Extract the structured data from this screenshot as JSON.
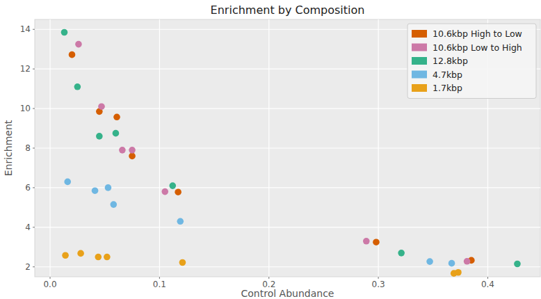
{
  "chart_data": {
    "type": "scatter",
    "title": "Enrichment by Composition",
    "x_label": "Control Abundance",
    "y_label": "Enrichment",
    "xlim": [
      -0.014,
      0.448
    ],
    "ylim": [
      1.5,
      14.5
    ],
    "xticks": [
      {
        "value": 0,
        "label": "0.0"
      },
      0.1,
      0.2,
      0.3,
      0.4
    ],
    "yticks": [
      2,
      4,
      6,
      8,
      10,
      12,
      14
    ],
    "grid": true,
    "legend": "upper right",
    "marker": "circle",
    "series": [
      {
        "name": "10.6kbp High to Low",
        "color": "#d55e00",
        "x": [
          0.02,
          0.045,
          0.061,
          0.075,
          0.117,
          0.298,
          0.385
        ],
        "values": [
          12.72,
          9.85,
          9.57,
          7.6,
          5.78,
          3.25,
          2.33
        ]
      },
      {
        "name": "10.6kbp Low to High",
        "color": "#cc79a7",
        "x": [
          0.026,
          0.047,
          0.066,
          0.075,
          0.105,
          0.289,
          0.381
        ],
        "values": [
          13.25,
          10.1,
          7.9,
          7.9,
          5.8,
          3.3,
          2.28
        ]
      },
      {
        "name": "12.8kbp",
        "color": "#35b28a",
        "x": [
          0.013,
          0.025,
          0.045,
          0.06,
          0.112,
          0.321,
          0.427
        ],
        "values": [
          13.85,
          11.1,
          8.6,
          8.75,
          6.1,
          2.7,
          2.15
        ]
      },
      {
        "name": "4.7kbp",
        "color": "#6fb7e2",
        "x": [
          0.016,
          0.041,
          0.053,
          0.058,
          0.119,
          0.347,
          0.367
        ],
        "values": [
          6.3,
          5.85,
          6.0,
          5.15,
          4.3,
          2.27,
          2.18
        ]
      },
      {
        "name": "1.7kbp",
        "color": "#e8a11a",
        "x": [
          0.014,
          0.028,
          0.044,
          0.052,
          0.121,
          0.369,
          0.373
        ],
        "values": [
          2.58,
          2.68,
          2.5,
          2.5,
          2.22,
          1.67,
          1.72
        ]
      }
    ]
  }
}
